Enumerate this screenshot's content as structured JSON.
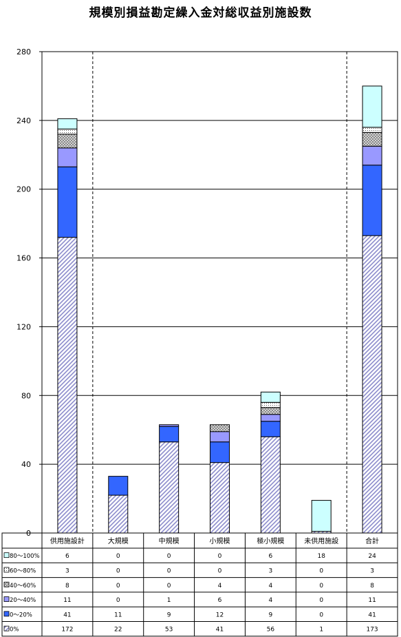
{
  "chart_data": {
    "type": "bar",
    "stacked": true,
    "title": "規模別損益勘定繰入金対総収益別施設数",
    "categories": [
      "供用施設計",
      "大規模",
      "中規模",
      "小規模",
      "極小規模",
      "未供用施設",
      "合計"
    ],
    "ylim": [
      0,
      280
    ],
    "yticks": [
      0,
      40,
      80,
      120,
      160,
      200,
      240,
      280
    ],
    "grid": true,
    "legend": "data-table-bottom",
    "series": [
      {
        "name": "0%",
        "values": [
          172,
          22,
          53,
          41,
          56,
          1,
          173
        ],
        "color": "#c8c8f0",
        "pattern": "hatch-diagonal"
      },
      {
        "name": "0～20%",
        "values": [
          41,
          11,
          9,
          12,
          9,
          0,
          41
        ],
        "color": "#3366ff",
        "pattern": "solid"
      },
      {
        "name": "20～40%",
        "values": [
          11,
          0,
          1,
          6,
          4,
          0,
          11
        ],
        "color": "#9999ff",
        "pattern": "solid"
      },
      {
        "name": "40～60%",
        "values": [
          8,
          0,
          0,
          4,
          4,
          0,
          8
        ],
        "color": "#c0c0c0",
        "pattern": "crosshatch"
      },
      {
        "name": "60～80%",
        "values": [
          3,
          0,
          0,
          0,
          3,
          0,
          3
        ],
        "color": "#ffffff",
        "pattern": "dots"
      },
      {
        "name": "80～100%",
        "values": [
          6,
          0,
          0,
          0,
          6,
          18,
          24
        ],
        "color": "#ccffff",
        "pattern": "solid"
      }
    ]
  }
}
